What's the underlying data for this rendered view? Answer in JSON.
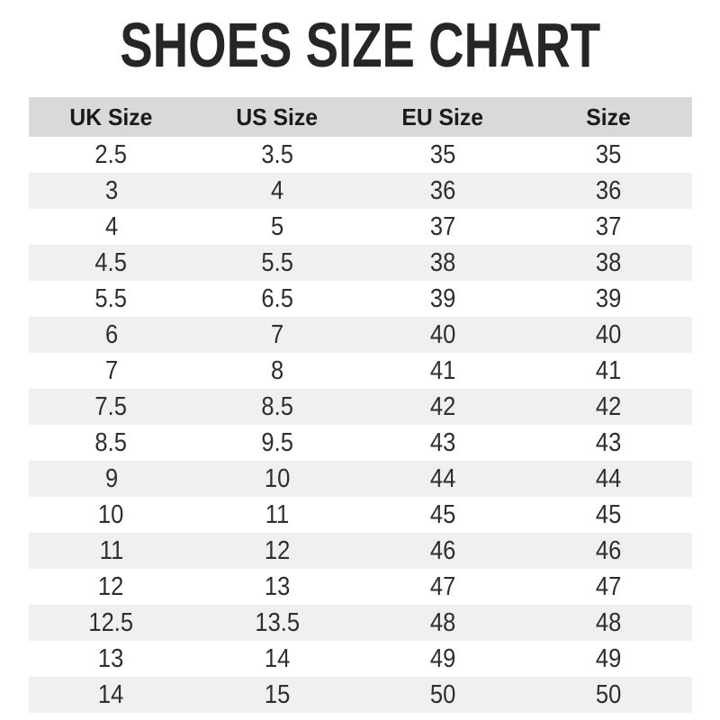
{
  "page": {
    "title": "SHOES SIZE CHART"
  },
  "colors": {
    "page_bg": "#ffffff",
    "header_row_bg": "#d9d9d9",
    "stripe_row_bg": "#f0f0f0",
    "title_text": "#262626",
    "header_text": "#1a1a1a",
    "cell_text": "#2e2e2e"
  },
  "chart_data": {
    "type": "table",
    "title": "SHOES SIZE CHART",
    "columns": [
      "UK Size",
      "US Size",
      "EU Size",
      "Size"
    ],
    "rows": [
      [
        "2.5",
        "3.5",
        "35",
        "35"
      ],
      [
        "3",
        "4",
        "36",
        "36"
      ],
      [
        "4",
        "5",
        "37",
        "37"
      ],
      [
        "4.5",
        "5.5",
        "38",
        "38"
      ],
      [
        "5.5",
        "6.5",
        "39",
        "39"
      ],
      [
        "6",
        "7",
        "40",
        "40"
      ],
      [
        "7",
        "8",
        "41",
        "41"
      ],
      [
        "7.5",
        "8.5",
        "42",
        "42"
      ],
      [
        "8.5",
        "9.5",
        "43",
        "43"
      ],
      [
        "9",
        "10",
        "44",
        "44"
      ],
      [
        "10",
        "11",
        "45",
        "45"
      ],
      [
        "11",
        "12",
        "46",
        "46"
      ],
      [
        "12",
        "13",
        "47",
        "47"
      ],
      [
        "12.5",
        "13.5",
        "48",
        "48"
      ],
      [
        "13",
        "14",
        "49",
        "49"
      ],
      [
        "14",
        "15",
        "50",
        "50"
      ]
    ],
    "layout": {
      "zebra_striping": true,
      "first_data_row_background": "white",
      "alternate_row_background": "light-gray",
      "header_background": "gray",
      "text_alignment": "center"
    }
  }
}
